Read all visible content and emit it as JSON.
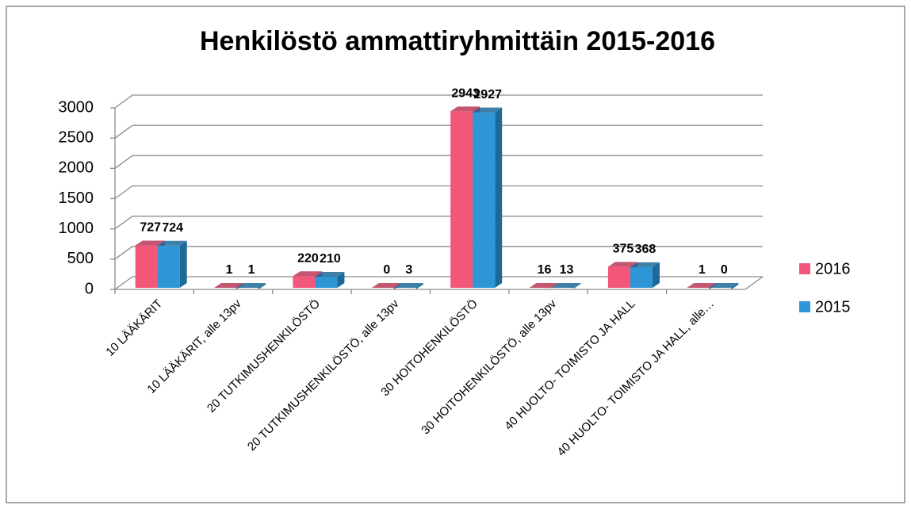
{
  "chart_data": {
    "type": "bar3d",
    "title": "Henkilöstö ammattiryhmittäin 2015-2016",
    "categories": [
      "10 LÄÄKÄRIT",
      "10 LÄÄKÄRIT, alle 13pv",
      "20 TUTKIMUSHENKILÖSTÖ",
      "20 TUTKIMUSHENKILÖSTÖ, alle 13pv",
      "30 HOITOHENKILÖSTÖ",
      "30 HOITOHENKILÖSTÖ, alle 13pv",
      "40 HUOLTO- TOIMISTO JA HALL",
      "40 HUOLTO- TOIMISTO JA HALL, alle…"
    ],
    "series": [
      {
        "name": "2016",
        "color": "#f2577a",
        "side": "#b83a58",
        "values": [
          727,
          1,
          220,
          0,
          2943,
          16,
          375,
          1
        ]
      },
      {
        "name": "2015",
        "color": "#2e96d4",
        "side": "#1d6a99",
        "values": [
          724,
          1,
          210,
          3,
          2927,
          13,
          368,
          0
        ]
      }
    ],
    "ylim": [
      0,
      3000
    ],
    "yticks": [
      0,
      500,
      1000,
      1500,
      2000,
      2500,
      3000
    ],
    "grid": true,
    "legend": "right"
  }
}
